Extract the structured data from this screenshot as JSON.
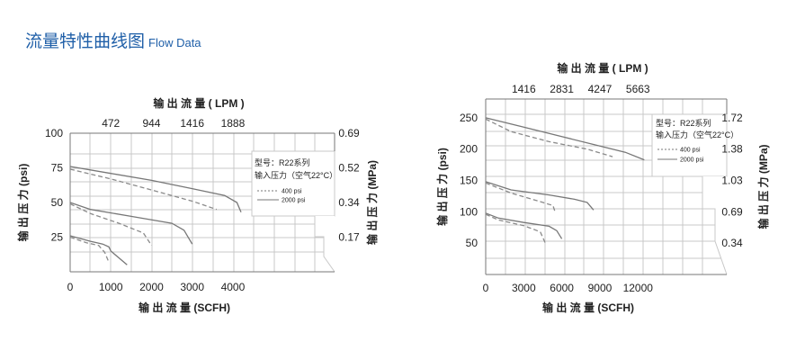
{
  "header": {
    "title_cn": "流量特性曲线图",
    "title_en": "Flow Data"
  },
  "chart_data": [
    {
      "type": "line",
      "model": "R22",
      "legend_title_1": "型号：R22系列",
      "legend_title_2": "输入压力（空气22°C）",
      "legend_items": [
        {
          "name": "400 psi",
          "style": "dashed"
        },
        {
          "name": "2000 psi",
          "style": "solid"
        }
      ],
      "xlabel_bottom": "输 出 流 量 (SCFH)",
      "xlabel_top": "输 出 流 量 ( LPM )",
      "ylabel_left": "输 出 压 力 (psi)",
      "ylabel_right": "输 出 压 力 (MPa)",
      "x_ticks": [
        "0",
        "1000",
        "2000",
        "3000",
        "4000"
      ],
      "x_tick_values": [
        0,
        1000,
        2000,
        3000,
        4000
      ],
      "x_top_ticks": [
        "472",
        "944",
        "1416",
        "1888"
      ],
      "x_top_values": [
        1000,
        2000,
        3000,
        4000
      ],
      "y_ticks": [
        "25",
        "50",
        "75",
        "100"
      ],
      "y_tick_values": [
        25,
        50,
        75,
        100
      ],
      "y_right_ticks": [
        "0.17",
        "0.34",
        "0.52",
        "0.69"
      ],
      "y_right_values": [
        25,
        50,
        75,
        100
      ],
      "xlim": [
        0,
        6500
      ],
      "ylim": [
        0,
        100
      ],
      "grid": true,
      "series": [
        {
          "style": "solid",
          "x": [
            0,
            500,
            800,
            950,
            1000,
            1400
          ],
          "y": [
            26,
            22,
            20,
            18,
            15,
            5
          ]
        },
        {
          "style": "dashed",
          "x": [
            0,
            400,
            700,
            850,
            950
          ],
          "y": [
            25,
            21,
            19,
            14,
            7
          ]
        },
        {
          "style": "solid",
          "x": [
            0,
            500,
            1500,
            2500,
            2800,
            3000
          ],
          "y": [
            50,
            45,
            40,
            35,
            30,
            20
          ]
        },
        {
          "style": "dashed",
          "x": [
            0,
            500,
            1200,
            1800,
            2000
          ],
          "y": [
            49,
            42,
            35,
            28,
            19
          ]
        },
        {
          "style": "solid",
          "x": [
            0,
            1000,
            2000,
            3000,
            3800,
            4100,
            4200
          ],
          "y": [
            76,
            71,
            66,
            60,
            55,
            50,
            43
          ]
        },
        {
          "style": "dashed",
          "x": [
            0,
            1000,
            2000,
            3000,
            3600
          ],
          "y": [
            74,
            67,
            59,
            51,
            45
          ]
        }
      ]
    },
    {
      "type": "line",
      "model": "R22",
      "legend_title_1": "型号：R22系列",
      "legend_title_2": "输入压力（空气22°C）",
      "legend_items": [
        {
          "name": "400 psi",
          "style": "dashed"
        },
        {
          "name": "2000 psi",
          "style": "solid"
        }
      ],
      "xlabel_bottom": "输 出 流 量 (SCFH)",
      "xlabel_top": "输 出 流 量 ( LPM )",
      "ylabel_left": "输 出 压 力 (psi)",
      "ylabel_right": "输 出 压 力 (MPa)",
      "x_ticks": [
        "0",
        "3000",
        "6000",
        "9000",
        "12000"
      ],
      "x_tick_values": [
        0,
        3000,
        6000,
        9000,
        12000
      ],
      "x_top_ticks": [
        "1416",
        "2831",
        "4247",
        "5663"
      ],
      "x_top_values": [
        3000,
        6000,
        9000,
        12000
      ],
      "y_ticks": [
        "50",
        "100",
        "150",
        "200",
        "250"
      ],
      "y_tick_values": [
        50,
        100,
        150,
        200,
        250
      ],
      "y_right_ticks": [
        "0.34",
        "0.69",
        "1.03",
        "1.38",
        "1.72"
      ],
      "y_right_values": [
        50,
        100,
        150,
        200,
        250
      ],
      "xlim": [
        0,
        19000
      ],
      "ylim": [
        0,
        280
      ],
      "grid": true,
      "series": [
        {
          "style": "solid",
          "x": [
            0,
            1000,
            3000,
            5000,
            5600,
            6000
          ],
          "y": [
            98,
            90,
            83,
            77,
            70,
            57
          ]
        },
        {
          "style": "dashed",
          "x": [
            0,
            1000,
            3000,
            4300,
            4700
          ],
          "y": [
            96,
            87,
            78,
            68,
            50
          ]
        },
        {
          "style": "solid",
          "x": [
            0,
            2000,
            5000,
            7000,
            8000,
            8500
          ],
          "y": [
            148,
            135,
            127,
            120,
            115,
            103
          ]
        },
        {
          "style": "dashed",
          "x": [
            0,
            2000,
            4500,
            5300,
            5500
          ],
          "y": [
            146,
            130,
            115,
            110,
            98
          ]
        },
        {
          "style": "solid",
          "x": [
            0,
            3000,
            6000,
            9000,
            11000,
            12500
          ],
          "y": [
            250,
            235,
            220,
            205,
            195,
            183
          ]
        },
        {
          "style": "dashed",
          "x": [
            0,
            2000,
            5000,
            8000,
            10000
          ],
          "y": [
            248,
            228,
            212,
            200,
            188
          ]
        }
      ]
    }
  ]
}
